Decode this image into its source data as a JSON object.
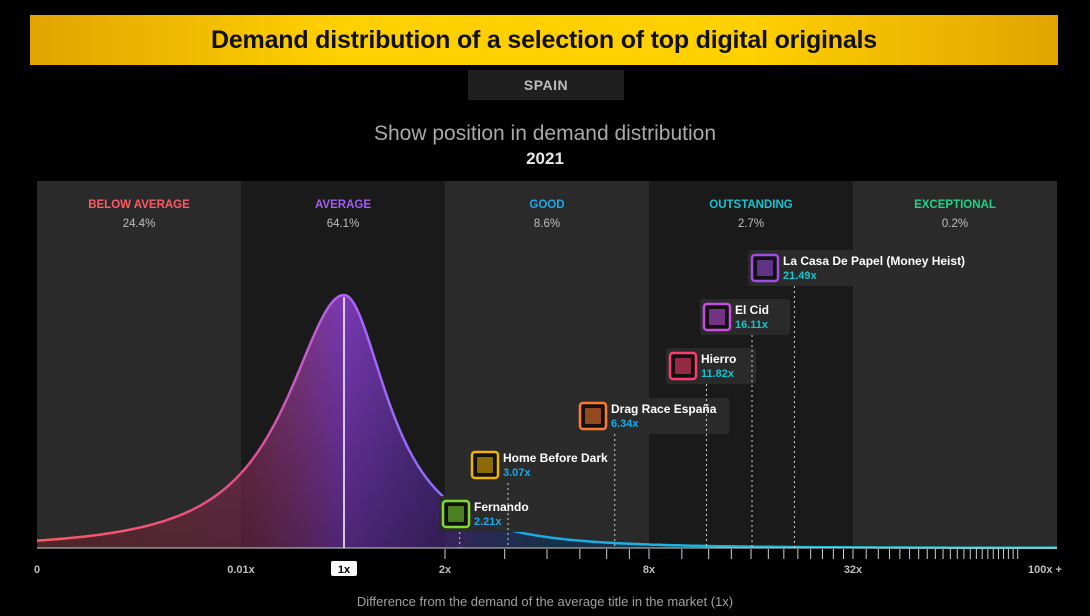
{
  "header": {
    "title": "Demand distribution of a selection of top digital originals",
    "region": "SPAIN"
  },
  "chart_data": {
    "type": "area",
    "title": "Show position in demand distribution",
    "subtitle": "2021",
    "xlabel": "Difference from the demand of the average title in the market (1x)",
    "ylabel": "",
    "x_ticks": [
      "0",
      "0.01x",
      "1x",
      "2x",
      "8x",
      "32x",
      "100x +"
    ],
    "highlighted_tick": "1x",
    "grid": false,
    "colors": {
      "below_average": "#ff5a64",
      "average": "#a45cf5",
      "good": "#1ca9e8",
      "outstanding": "#17c2cf",
      "exceptional": "#1fd38a",
      "panel_light": "#2a2a2a",
      "panel_dark": "#1a1a1a"
    },
    "bands": [
      {
        "label": "BELOW AVERAGE",
        "share": "24.4%",
        "from": "0",
        "to": "0.01x"
      },
      {
        "label": "AVERAGE",
        "share": "64.1%",
        "from": "0.01x",
        "to": "2x"
      },
      {
        "label": "GOOD",
        "share": "8.6%",
        "from": "2x",
        "to": "8x"
      },
      {
        "label": "OUTSTANDING",
        "share": "2.7%",
        "from": "8x",
        "to": "32x"
      },
      {
        "label": "EXCEPTIONAL",
        "share": "0.2%",
        "from": "32x",
        "to": "100x +"
      }
    ],
    "shows": [
      {
        "name": "Fernando",
        "value": 2.21,
        "value_label": "2.21x",
        "color": "#7ddc2f"
      },
      {
        "name": "Home Before Dark",
        "value": 3.07,
        "value_label": "3.07x",
        "color": "#f0b400"
      },
      {
        "name": "Drag Race España",
        "value": 6.34,
        "value_label": "6.34x",
        "color": "#ff7a2e"
      },
      {
        "name": "Hierro",
        "value": 11.82,
        "value_label": "11.82x",
        "color": "#ff3c6e"
      },
      {
        "name": "El Cid",
        "value": 16.11,
        "value_label": "16.11x",
        "color": "#c84ce0"
      },
      {
        "name": "La Casa De Papel (Money Heist)",
        "value": 21.49,
        "value_label": "21.49x",
        "color": "#a14ee6"
      }
    ]
  }
}
